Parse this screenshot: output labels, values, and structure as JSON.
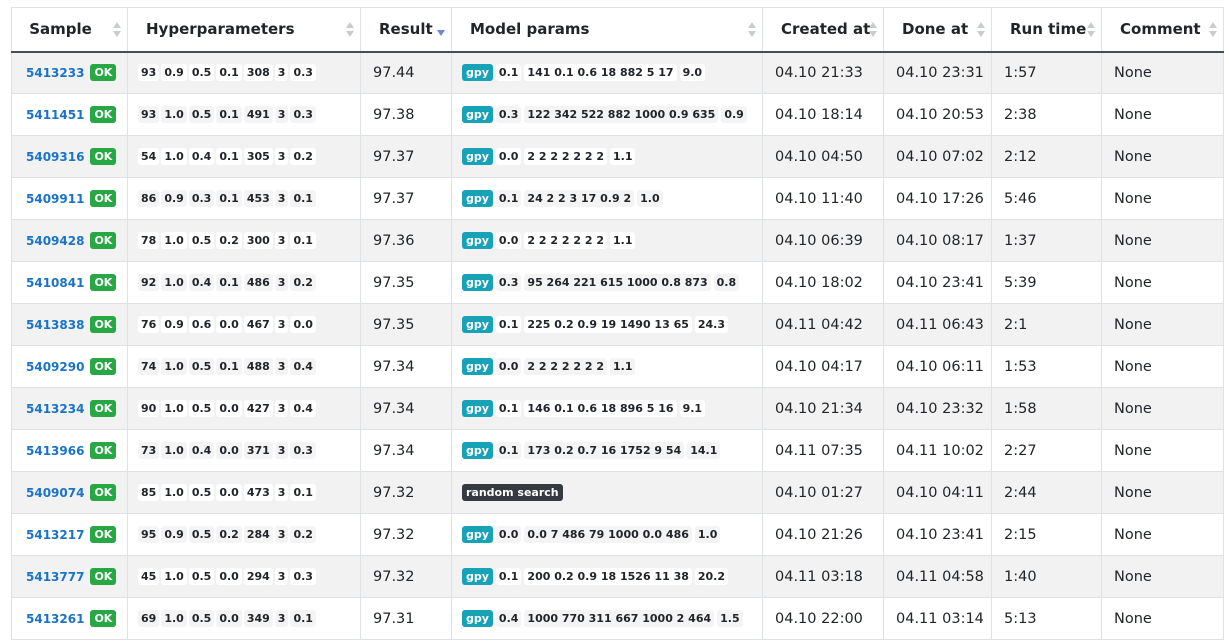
{
  "table": {
    "headers": [
      "Sample",
      "Hyperparameters",
      "Result",
      "Model params",
      "Created at",
      "Done at",
      "Run time",
      "Comment"
    ],
    "status_label": "OK",
    "gpy_label": "gpy",
    "sorted_column": "Result",
    "rows": [
      {
        "id": "5413233",
        "hp": [
          "93",
          "0.9",
          "0.5",
          "0.1",
          "308",
          "3",
          "0.3"
        ],
        "result": "97.44",
        "mp_kind": "gpy",
        "mp": [
          "0.1",
          "141 0.1 0.6 18 882 5 17",
          "9.0"
        ],
        "created": "04.10 21:33",
        "done": "04.10 23:31",
        "runtime": "1:57",
        "comment": "None"
      },
      {
        "id": "5411451",
        "hp": [
          "93",
          "1.0",
          "0.5",
          "0.1",
          "491",
          "3",
          "0.3"
        ],
        "result": "97.38",
        "mp_kind": "gpy",
        "mp": [
          "0.3",
          "122 342 522 882 1000 0.9 635",
          "0.9"
        ],
        "created": "04.10 18:14",
        "done": "04.10 20:53",
        "runtime": "2:38",
        "comment": "None"
      },
      {
        "id": "5409316",
        "hp": [
          "54",
          "1.0",
          "0.4",
          "0.1",
          "305",
          "3",
          "0.2"
        ],
        "result": "97.37",
        "mp_kind": "gpy",
        "mp": [
          "0.0",
          "2 2 2 2 2 2 2",
          "1.1"
        ],
        "created": "04.10 04:50",
        "done": "04.10 07:02",
        "runtime": "2:12",
        "comment": "None"
      },
      {
        "id": "5409911",
        "hp": [
          "86",
          "0.9",
          "0.3",
          "0.1",
          "453",
          "3",
          "0.1"
        ],
        "result": "97.37",
        "mp_kind": "gpy",
        "mp": [
          "0.1",
          "24 2 2 3 17 0.9 2",
          "1.0"
        ],
        "created": "04.10 11:40",
        "done": "04.10 17:26",
        "runtime": "5:46",
        "comment": "None"
      },
      {
        "id": "5409428",
        "hp": [
          "78",
          "1.0",
          "0.5",
          "0.2",
          "300",
          "3",
          "0.1"
        ],
        "result": "97.36",
        "mp_kind": "gpy",
        "mp": [
          "0.0",
          "2 2 2 2 2 2 2",
          "1.1"
        ],
        "created": "04.10 06:39",
        "done": "04.10 08:17",
        "runtime": "1:37",
        "comment": "None"
      },
      {
        "id": "5410841",
        "hp": [
          "92",
          "1.0",
          "0.4",
          "0.1",
          "486",
          "3",
          "0.2"
        ],
        "result": "97.35",
        "mp_kind": "gpy",
        "mp": [
          "0.3",
          "95 264 221 615 1000 0.8 873",
          "0.8"
        ],
        "created": "04.10 18:02",
        "done": "04.10 23:41",
        "runtime": "5:39",
        "comment": "None"
      },
      {
        "id": "5413838",
        "hp": [
          "76",
          "0.9",
          "0.6",
          "0.0",
          "467",
          "3",
          "0.0"
        ],
        "result": "97.35",
        "mp_kind": "gpy",
        "mp": [
          "0.1",
          "225 0.2 0.9 19 1490 13 65",
          "24.3"
        ],
        "created": "04.11 04:42",
        "done": "04.11 06:43",
        "runtime": "2:1",
        "comment": "None"
      },
      {
        "id": "5409290",
        "hp": [
          "74",
          "1.0",
          "0.5",
          "0.1",
          "488",
          "3",
          "0.4"
        ],
        "result": "97.34",
        "mp_kind": "gpy",
        "mp": [
          "0.0",
          "2 2 2 2 2 2 2",
          "1.1"
        ],
        "created": "04.10 04:17",
        "done": "04.10 06:11",
        "runtime": "1:53",
        "comment": "None"
      },
      {
        "id": "5413234",
        "hp": [
          "90",
          "1.0",
          "0.5",
          "0.0",
          "427",
          "3",
          "0.4"
        ],
        "result": "97.34",
        "mp_kind": "gpy",
        "mp": [
          "0.1",
          "146 0.1 0.6 18 896 5 16",
          "9.1"
        ],
        "created": "04.10 21:34",
        "done": "04.10 23:32",
        "runtime": "1:58",
        "comment": "None"
      },
      {
        "id": "5413966",
        "hp": [
          "73",
          "1.0",
          "0.4",
          "0.0",
          "371",
          "3",
          "0.3"
        ],
        "result": "97.34",
        "mp_kind": "gpy",
        "mp": [
          "0.1",
          "173 0.2 0.7 16 1752 9 54",
          "14.1"
        ],
        "created": "04.11 07:35",
        "done": "04.11 10:02",
        "runtime": "2:27",
        "comment": "None"
      },
      {
        "id": "5409074",
        "hp": [
          "85",
          "1.0",
          "0.5",
          "0.0",
          "473",
          "3",
          "0.1"
        ],
        "result": "97.32",
        "mp_kind": "random",
        "mp_label": "random search",
        "mp": [],
        "created": "04.10 01:27",
        "done": "04.10 04:11",
        "runtime": "2:44",
        "comment": "None"
      },
      {
        "id": "5413217",
        "hp": [
          "95",
          "0.9",
          "0.5",
          "0.2",
          "284",
          "3",
          "0.2"
        ],
        "result": "97.32",
        "mp_kind": "gpy",
        "mp": [
          "0.0",
          "0.0 7 486 79 1000 0.0 486",
          "1.0"
        ],
        "created": "04.10 21:26",
        "done": "04.10 23:41",
        "runtime": "2:15",
        "comment": "None"
      },
      {
        "id": "5413777",
        "hp": [
          "45",
          "1.0",
          "0.5",
          "0.0",
          "294",
          "3",
          "0.3"
        ],
        "result": "97.32",
        "mp_kind": "gpy",
        "mp": [
          "0.1",
          "200 0.2 0.9 18 1526 11 38",
          "20.2"
        ],
        "created": "04.11 03:18",
        "done": "04.11 04:58",
        "runtime": "1:40",
        "comment": "None"
      },
      {
        "id": "5413261",
        "hp": [
          "69",
          "1.0",
          "0.5",
          "0.0",
          "349",
          "3",
          "0.1"
        ],
        "result": "97.31",
        "mp_kind": "gpy",
        "mp": [
          "0.4",
          "1000 770 311 667 1000 2 464",
          "1.5"
        ],
        "created": "04.10 22:00",
        "done": "04.11 03:14",
        "runtime": "5:13",
        "comment": "None"
      }
    ]
  }
}
